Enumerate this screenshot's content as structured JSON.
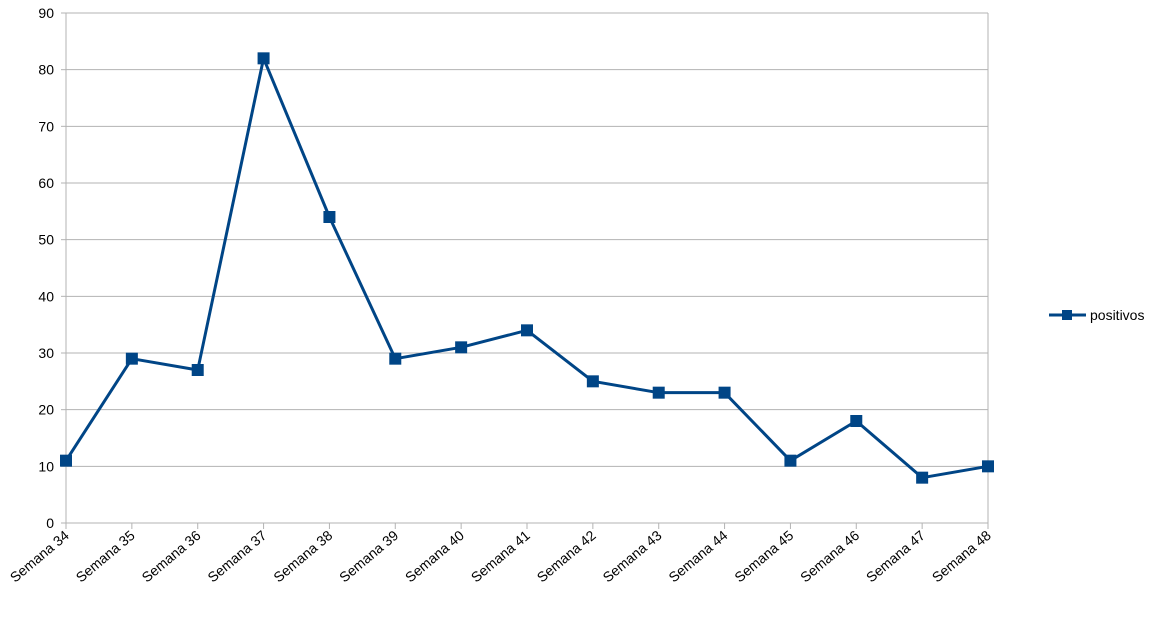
{
  "chart_data": {
    "type": "line",
    "categories": [
      "Semana 34",
      "Semana 35",
      "Semana 36",
      "Semana 37",
      "Semana 38",
      "Semana 39",
      "Semana 40",
      "Semana 41",
      "Semana 42",
      "Semana 43",
      "Semana 44",
      "Semana 45",
      "Semana 46",
      "Semana 47",
      "Semana 48"
    ],
    "series": [
      {
        "name": "positivos",
        "values": [
          11,
          29,
          27,
          82,
          54,
          29,
          31,
          34,
          25,
          23,
          23,
          11,
          18,
          8,
          10
        ],
        "color": "#004586",
        "marker": "square"
      }
    ],
    "title": "",
    "xlabel": "",
    "ylabel": "",
    "ylim": [
      0,
      90
    ],
    "yticks": [
      "0",
      "10",
      "20",
      "30",
      "40",
      "50",
      "60",
      "70",
      "80",
      "90"
    ],
    "grid": true,
    "legend": "right"
  }
}
